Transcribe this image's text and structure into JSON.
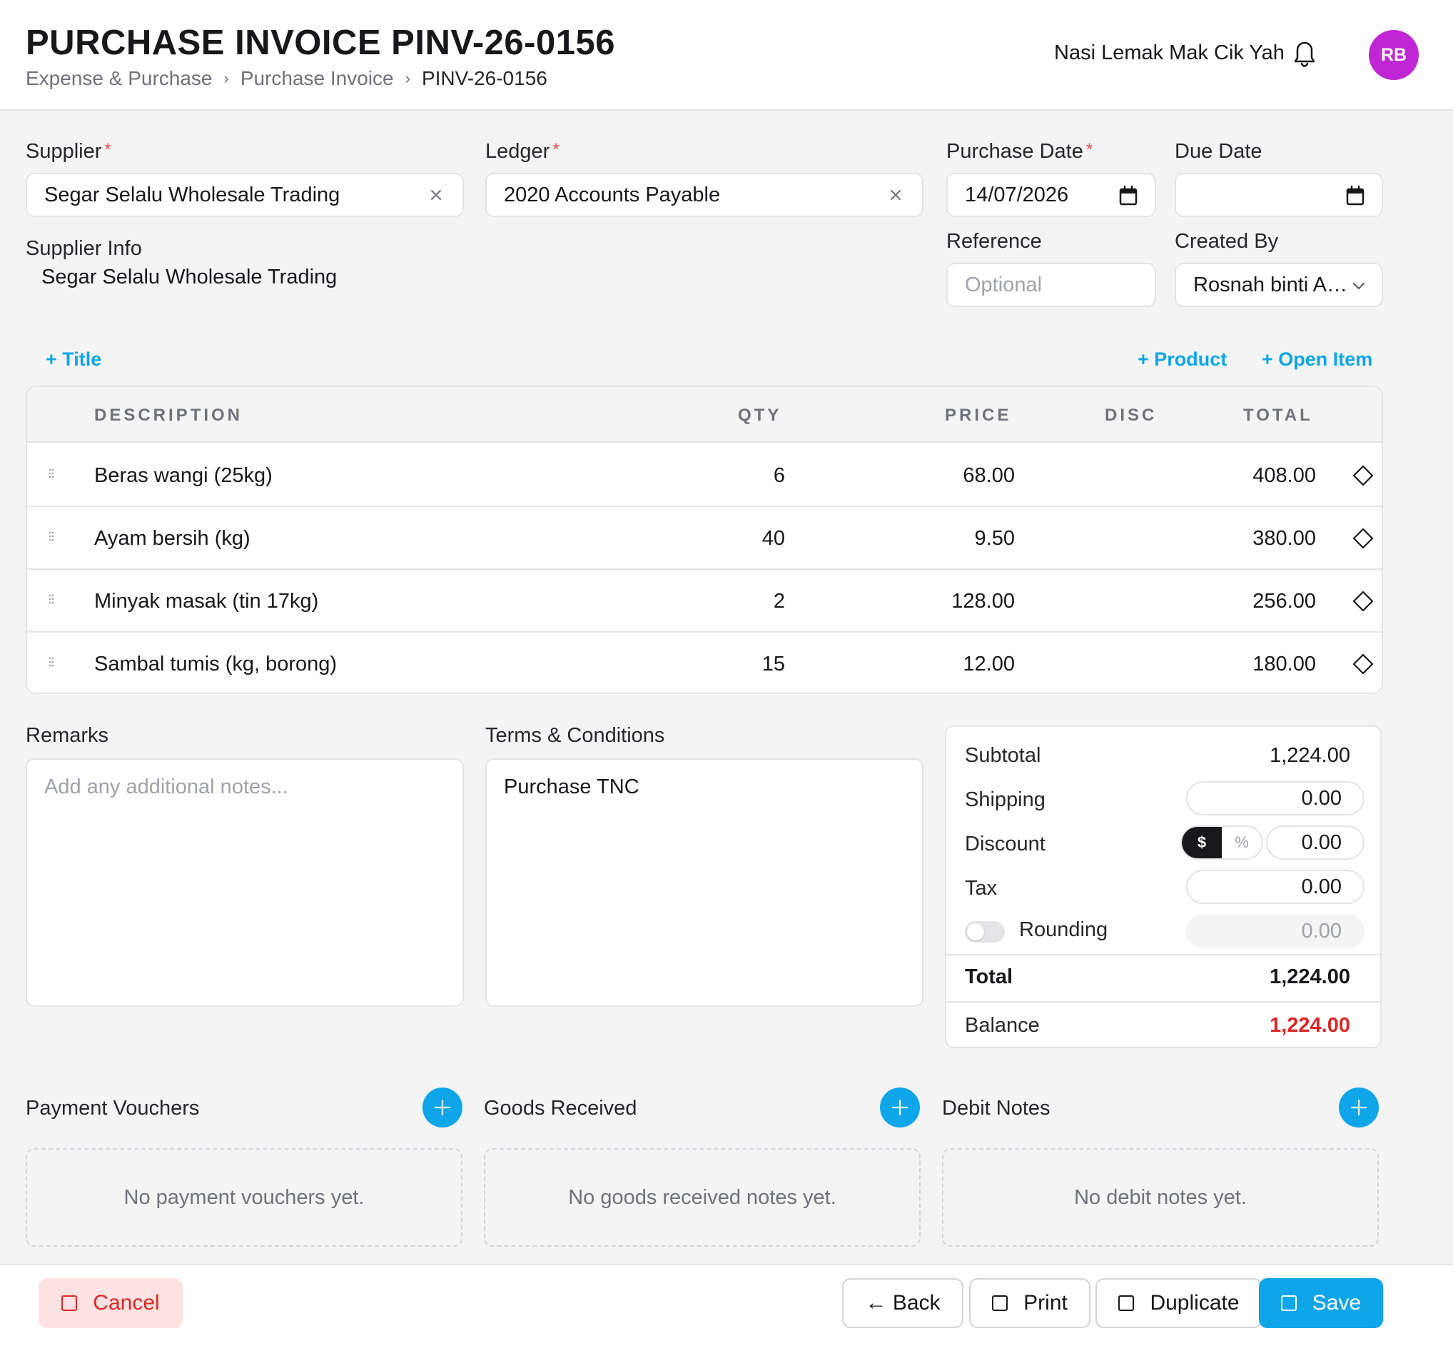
{
  "header": {
    "title": "PURCHASE INVOICE PINV-26-0156",
    "breadcrumb": [
      "Expense & Purchase",
      "Purchase Invoice",
      "PINV-26-0156"
    ],
    "company": "Nasi Lemak Mak Cik Yah",
    "avatar_initials": "RB",
    "avatar_color": "#c026d3"
  },
  "form": {
    "supplier_label": "Supplier",
    "supplier_value": "Segar Selalu Wholesale Trading",
    "ledger_label": "Ledger",
    "ledger_value": "2020 Accounts Payable",
    "purchase_date_label": "Purchase Date",
    "purchase_date_value": "14/07/2026",
    "due_date_label": "Due Date",
    "due_date_value": "",
    "reference_label": "Reference",
    "reference_placeholder": "Optional",
    "created_by_label": "Created By",
    "created_by_value": "Rosnah binti A…",
    "supplier_info_label": "Supplier Info",
    "supplier_info_value": "Segar Selalu Wholesale Trading",
    "required_mark": "*"
  },
  "actions": {
    "add_title": "+ Title",
    "add_product": "+ Product",
    "add_open_item": "+ Open Item"
  },
  "table": {
    "headers": {
      "description": "DESCRIPTION",
      "qty": "QTY",
      "price": "PRICE",
      "disc": "DISC",
      "total": "TOTAL"
    },
    "rows": [
      {
        "description": "Beras wangi (25kg)",
        "qty": "6",
        "price": "68.00",
        "disc": "",
        "total": "408.00"
      },
      {
        "description": "Ayam bersih (kg)",
        "qty": "40",
        "price": "9.50",
        "disc": "",
        "total": "380.00"
      },
      {
        "description": "Minyak masak (tin 17kg)",
        "qty": "2",
        "price": "128.00",
        "disc": "",
        "total": "256.00"
      },
      {
        "description": "Sambal tumis (kg, borong)",
        "qty": "15",
        "price": "12.00",
        "disc": "",
        "total": "180.00"
      }
    ]
  },
  "remarks": {
    "label": "Remarks",
    "placeholder": "Add any additional notes..."
  },
  "terms": {
    "label": "Terms & Conditions",
    "value": "Purchase TNC"
  },
  "totals": {
    "subtotal_label": "Subtotal",
    "subtotal_value": "1,224.00",
    "shipping_label": "Shipping",
    "shipping_value": "0.00",
    "discount_label": "Discount",
    "discount_mode_dollar": "$",
    "discount_mode_percent": "%",
    "discount_value": "0.00",
    "tax_label": "Tax",
    "tax_value": "0.00",
    "rounding_label": "Rounding",
    "rounding_value": "0.00",
    "rounding_enabled": false,
    "total_label": "Total",
    "total_value": "1,224.00",
    "balance_label": "Balance",
    "balance_value": "1,224.00",
    "balance_color": "#dc2626"
  },
  "related": {
    "payment_vouchers_title": "Payment Vouchers",
    "payment_vouchers_empty": "No payment vouchers yet.",
    "goods_received_title": "Goods Received",
    "goods_received_empty": "No goods received notes yet.",
    "debit_notes_title": "Debit Notes",
    "debit_notes_empty": "No debit notes yet."
  },
  "footer": {
    "cancel": "Cancel",
    "back": "← Back",
    "print": "Print",
    "duplicate": "Duplicate",
    "save": "Save"
  },
  "colors": {
    "accent": "#0ea5e9",
    "danger": "#dc2626"
  }
}
